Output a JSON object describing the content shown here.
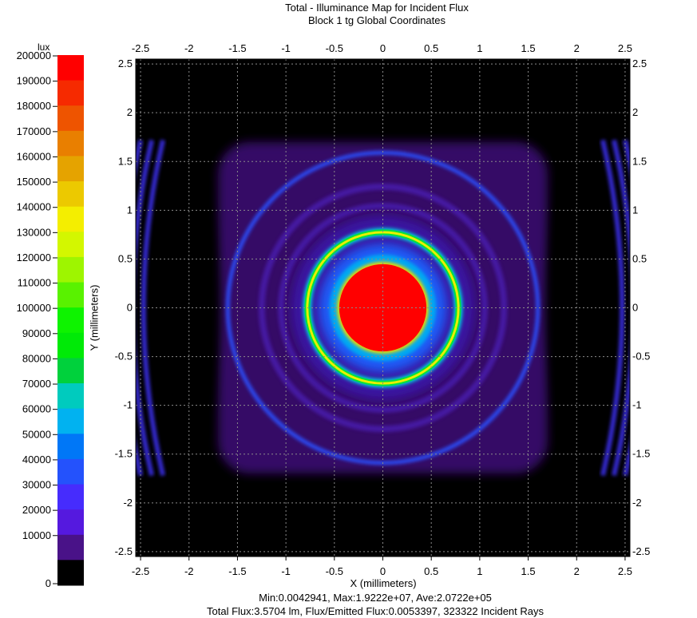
{
  "title": {
    "line1": "Total - Illuminance Map for Incident Flux",
    "line2": "Block 1 tg    Global Coordinates"
  },
  "colorbar": {
    "unit": "lux",
    "ticks": [
      "200000",
      "190000",
      "180000",
      "170000",
      "160000",
      "150000",
      "140000",
      "130000",
      "120000",
      "110000",
      "100000",
      "90000",
      "80000",
      "70000",
      "60000",
      "50000",
      "40000",
      "30000",
      "20000",
      "10000",
      "0"
    ],
    "colors": [
      "#ff0000",
      "#f62a00",
      "#ee5400",
      "#e97f00",
      "#e5a300",
      "#ecc900",
      "#f4ee00",
      "#d3f700",
      "#9ef500",
      "#59f200",
      "#0ef300",
      "#00ea07",
      "#00d13c",
      "#00cbbe",
      "#01b2f0",
      "#0077f7",
      "#2452fc",
      "#462cfd",
      "#5519df",
      "#491288",
      "#330544",
      "#000000"
    ]
  },
  "chart_data": {
    "type": "heatmap",
    "title": "Total - Illuminance Map for Incident Flux",
    "subtitle": "Block 1 tg    Global Coordinates",
    "xlabel": "X (millimeters)",
    "ylabel": "Y (millimeters)",
    "xlim": [
      -2.55,
      2.55
    ],
    "ylim": [
      -2.55,
      2.55
    ],
    "x_ticks": [
      "-2.5",
      "-2",
      "-1.5",
      "-1",
      "-0.5",
      "0",
      "0.5",
      "1",
      "1.5",
      "2",
      "2.5"
    ],
    "y_ticks": [
      "2.5",
      "2",
      "1.5",
      "1",
      "0.5",
      "0",
      "-0.5",
      "-1",
      "-1.5",
      "-2",
      "-2.5"
    ],
    "x_tick_values": [
      -2.5,
      -2,
      -1.5,
      -1,
      -0.5,
      0,
      0.5,
      1,
      1.5,
      2,
      2.5
    ],
    "y_tick_values": [
      2.5,
      2,
      1.5,
      1,
      0.5,
      0,
      -0.5,
      -1,
      -1.5,
      -2,
      -2.5
    ],
    "grid": true,
    "color_scale": {
      "min": 0,
      "max": 200000,
      "unit": "lux"
    },
    "features": [
      {
        "name": "central spot",
        "shape": "disk",
        "cx": 0,
        "cy": 0,
        "radius_mm": 0.45,
        "level_lux": 200000
      },
      {
        "name": "halo around spot",
        "shape": "ring",
        "cx": 0,
        "cy": 0,
        "inner_mm": 0.45,
        "outer_mm": 0.62,
        "level_lux": 45000
      },
      {
        "name": "bright ring",
        "shape": "ring",
        "cx": 0,
        "cy": 0,
        "radius_mm": 0.78,
        "level_lux": 110000
      },
      {
        "name": "outer ring",
        "shape": "ring",
        "cx": 0,
        "cy": 0,
        "radius_mm": 1.6,
        "level_lux": 45000
      },
      {
        "name": "diffuse background",
        "shape": "rect",
        "x": [
          -1.7,
          1.7
        ],
        "y": [
          -1.7,
          1.7
        ],
        "level_lux": 22000
      }
    ],
    "stats": {
      "line1": "Min:0.0042941, Max:1.9222e+07, Ave:2.0722e+05",
      "line2": "Total Flux:3.5704 lm, Flux/Emitted Flux:0.0053397, 323322 Incident Rays"
    }
  }
}
